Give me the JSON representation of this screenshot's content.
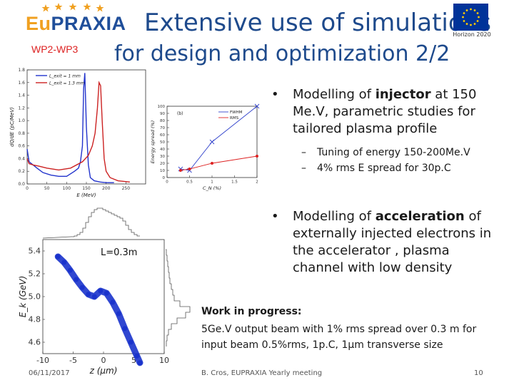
{
  "header": {
    "logo_eu": "Eu",
    "logo_rest": "PRAXIA",
    "wp_label": "WP2-WP3",
    "title_line1": "Extensive use of simulations",
    "title_line2": "for design and optimization 2/2",
    "horizon_label": "Horizon 2020"
  },
  "bullets": [
    {
      "pre": "Modelling of ",
      "bold": "injector",
      "post": " at  150 Me.V, parametric studies  for tailored plasma profile",
      "subs": [
        "Tuning of energy 150-200Me.V",
        "4% rms E spread for 30p.C"
      ]
    },
    {
      "pre": "Modelling of ",
      "bold": "acceleration",
      "post": " of externally injected electrons in the accelerator , plasma channel with low density",
      "subs": []
    }
  ],
  "work_in_progress": {
    "title": "Work in progress:",
    "text": "5Ge.V output beam with 1% rms spread over 0.3 m for input beam 0.5%rms,  1p.C, 1μm transverse size"
  },
  "footer": {
    "date": "06/11/2017",
    "author": "B. Cros, EUPRAXIA Yearly meeting",
    "page": "10"
  },
  "chart_data": [
    {
      "type": "line",
      "xlabel": "E (MeV)",
      "ylabel": "dQ/dE (pC/MeV)",
      "xlim": [
        0,
        300
      ],
      "ylim": [
        0,
        1.8
      ],
      "legend_position": "top-left",
      "x_ticks": [
        0,
        50,
        100,
        150,
        200,
        250
      ],
      "y_ticks": [
        0,
        0.2,
        0.4,
        0.6,
        0.8,
        1.0,
        1.2,
        1.4,
        1.6,
        1.8
      ],
      "series": [
        {
          "name": "L_exit = 1 mm",
          "color": "#2233cc",
          "x": [
            0,
            5,
            15,
            25,
            40,
            60,
            80,
            100,
            120,
            130,
            135,
            140,
            143,
            146,
            150,
            155,
            160,
            170,
            185,
            200,
            220
          ],
          "y": [
            0.55,
            0.35,
            0.3,
            0.25,
            0.18,
            0.14,
            0.12,
            0.12,
            0.2,
            0.25,
            0.35,
            0.6,
            1.5,
            1.75,
            0.9,
            0.3,
            0.1,
            0.05,
            0.03,
            0.02,
            0.02
          ]
        },
        {
          "name": "L_exit = 1.3 mm",
          "color": "#cc2222",
          "x": [
            0,
            5,
            15,
            30,
            50,
            80,
            110,
            140,
            155,
            165,
            172,
            178,
            182,
            186,
            190,
            195,
            200,
            210,
            230,
            260
          ],
          "y": [
            0.4,
            0.32,
            0.3,
            0.28,
            0.25,
            0.22,
            0.25,
            0.35,
            0.45,
            0.6,
            0.8,
            1.2,
            1.6,
            1.55,
            1.0,
            0.4,
            0.2,
            0.1,
            0.05,
            0.03
          ]
        }
      ]
    },
    {
      "type": "line",
      "xlabel": "C_N (%)",
      "ylabel": "Energy spread (%)",
      "panel_label": "(b)",
      "xlim": [
        0,
        2.0
      ],
      "ylim": [
        0,
        100
      ],
      "legend_position": "top-right",
      "x_ticks": [
        0.0,
        0.5,
        1.0,
        1.5,
        2.0
      ],
      "y_ticks": [
        0,
        10,
        20,
        30,
        40,
        50,
        60,
        70,
        80,
        90,
        100
      ],
      "series": [
        {
          "name": "FWHM",
          "color": "#3344cc",
          "marker": "x",
          "x": [
            0.3,
            0.5,
            1.0,
            2.0
          ],
          "y": [
            12,
            10,
            50,
            100
          ]
        },
        {
          "name": "RMS",
          "color": "#dd2222",
          "marker": "o",
          "x": [
            0.3,
            0.5,
            1.0,
            2.0
          ],
          "y": [
            10,
            12,
            20,
            30
          ]
        }
      ]
    },
    {
      "type": "scatter",
      "xlabel": "z (μm)",
      "ylabel": "E_k (GeV)",
      "annotation": "L=0.3m",
      "xlim": [
        -10,
        10
      ],
      "ylim": [
        4.5,
        5.5
      ],
      "x_ticks": [
        -10,
        -5,
        0,
        5,
        10
      ],
      "y_ticks": [
        4.6,
        4.8,
        5.0,
        5.2,
        5.4
      ],
      "series": [
        {
          "color": "#1a33cc",
          "x": [
            -7.5,
            -6.5,
            -5.5,
            -4.5,
            -3.5,
            -2.5,
            -1.5,
            -0.5,
            0.5,
            1.5,
            2.5,
            3.5,
            4.5,
            5.5,
            6.0
          ],
          "y": [
            5.35,
            5.3,
            5.23,
            5.15,
            5.08,
            5.02,
            5.0,
            5.05,
            5.03,
            4.95,
            4.85,
            4.72,
            4.6,
            4.48,
            4.42
          ]
        }
      ]
    }
  ]
}
